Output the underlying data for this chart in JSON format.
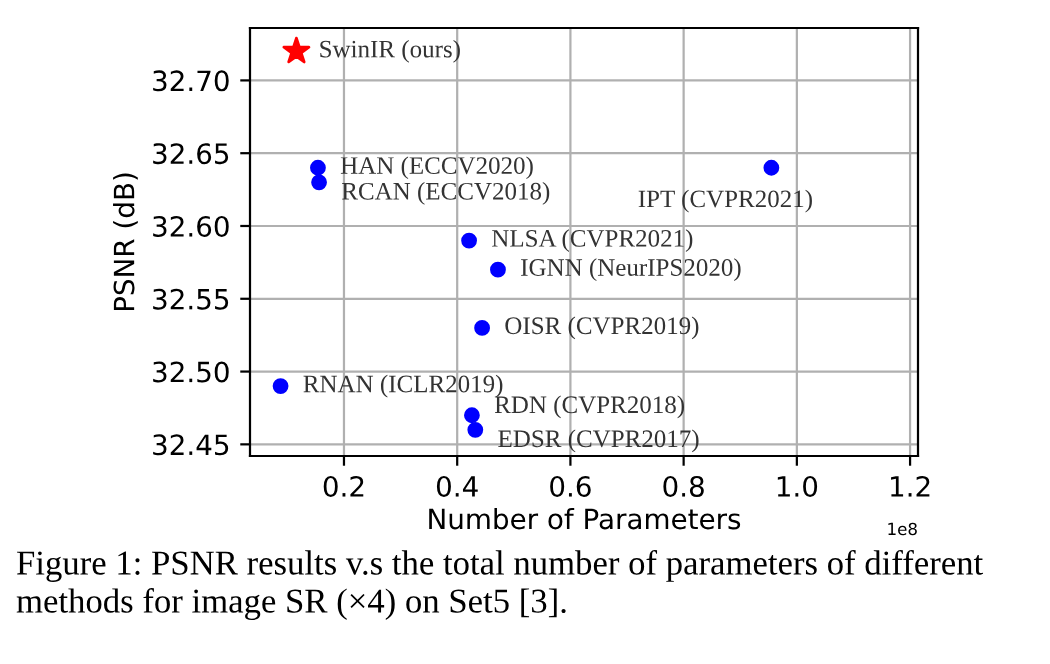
{
  "chart_data": {
    "type": "scatter",
    "xlabel": "Number of Parameters",
    "ylabel": "PSNR (dB)",
    "series": [
      {
        "color": "#ff0000",
        "marker": "star",
        "x": [
          0.116
        ],
        "values": [
          32.72
        ]
      },
      {
        "color": "#0000ff",
        "marker": "circle",
        "x": [
          0.154,
          0.156,
          0.955,
          0.421,
          0.472,
          0.444,
          0.088,
          0.426,
          0.432
        ],
        "values": [
          32.64,
          32.63,
          32.64,
          32.59,
          32.57,
          32.53,
          32.49,
          32.47,
          32.46
        ]
      }
    ],
    "xlim": [
      0.034,
      1.214
    ],
    "ylim": [
      32.442,
      32.736
    ],
    "xticks": [
      0.2,
      0.4,
      0.6,
      0.8,
      {
        "value": 1.0,
        "label": "1.0"
      },
      1.2
    ],
    "yticks": [
      {
        "value": 32.45,
        "label": "32.45"
      },
      {
        "value": 32.5,
        "label": "32.50"
      },
      {
        "value": 32.55,
        "label": "32.55"
      },
      {
        "value": 32.6,
        "label": "32.60"
      },
      {
        "value": 32.65,
        "label": "32.65"
      },
      {
        "value": 32.7,
        "label": "32.70"
      }
    ],
    "grid": true,
    "annotations": [
      {
        "text": "SwinIR (ours)",
        "x": 0.116,
        "y": 32.72
      },
      {
        "text": "HAN (ECCV2020)",
        "x": 0.154,
        "y": 32.64
      },
      {
        "text": "RCAN (ECCV2018)",
        "x": 0.156,
        "y": 32.63
      },
      {
        "text": "IPT (CVPR2021)",
        "x": 0.955,
        "y": 32.64
      },
      {
        "text": "NLSA (CVPR2021)",
        "x": 0.421,
        "y": 32.59
      },
      {
        "text": "IGNN (NeurIPS2020)",
        "x": 0.472,
        "y": 32.57
      },
      {
        "text": "OISR (CVPR2019)",
        "x": 0.444,
        "y": 32.53
      },
      {
        "text": "RNAN (ICLR2019)",
        "x": 0.088,
        "y": 32.49
      },
      {
        "text": "RDN (CVPR2018)",
        "x": 0.426,
        "y": 32.47
      },
      {
        "text": "EDSR (CVPR2017)",
        "x": 0.432,
        "y": 32.46
      },
      "1e8",
      "Figure 1: PSNR results v.s the total number of parameters of different methods for image SR (×4) on Set5 [3]."
    ]
  }
}
